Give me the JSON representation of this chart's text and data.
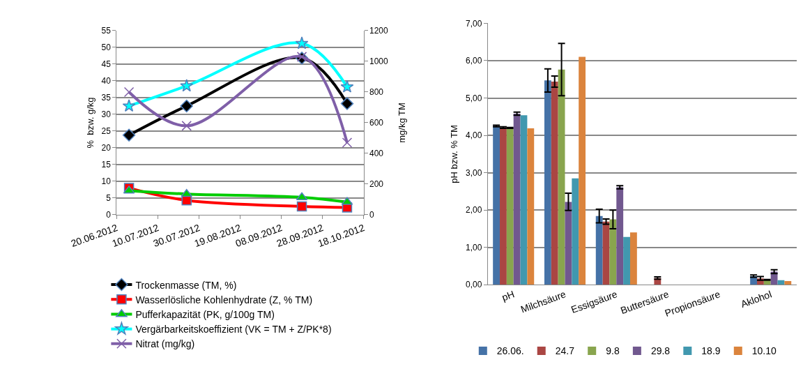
{
  "chart_data": [
    {
      "type": "line",
      "ylabel": "%  bzw. g/kg",
      "y2label": "mg/kg TM",
      "x": [
        "2012-06-26",
        "2012-07-24",
        "2012-09-18",
        "2012-10-10"
      ],
      "xlim": [
        "2012-06-20",
        "2012-10-18"
      ],
      "xticks": [
        {
          "value": "2012-06-20",
          "label": "20.06.2012"
        },
        {
          "value": "2012-07-10",
          "label": "10.07.2012"
        },
        {
          "value": "2012-07-30",
          "label": "30.07.2012"
        },
        {
          "value": "2012-08-19",
          "label": "19.08.2012"
        },
        {
          "value": "2012-09-08",
          "label": "08.09.2012"
        },
        {
          "value": "2012-09-28",
          "label": "28.09.2012"
        },
        {
          "value": "2012-10-18",
          "label": "18.10.2012"
        }
      ],
      "ylim": [
        0,
        55
      ],
      "yticks": [
        0,
        5,
        10,
        15,
        20,
        25,
        30,
        35,
        40,
        45,
        50,
        55
      ],
      "y2lim": [
        0,
        1200
      ],
      "y2ticks": [
        0,
        200,
        400,
        600,
        800,
        1000,
        1200
      ],
      "grid": "y",
      "legend": "bottom",
      "series": [
        {
          "name": "Trockenmasse (TM, %)",
          "color": "#000000",
          "marker": "diamond",
          "values": [
            23.8,
            32.5,
            46.8,
            33.2
          ]
        },
        {
          "name": "Wasserlösliche Kohlenhydrate (Z, % TM)",
          "color": "#ff0000",
          "marker": "square",
          "values": [
            8,
            4.3,
            2.5,
            2.2
          ]
        },
        {
          "name": "Pufferkapazität (PK, g/100g TM)",
          "color": "#00cc00",
          "marker": "triangle",
          "values": [
            7.2,
            6.2,
            5.2,
            3.8
          ]
        },
        {
          "name": "Vergärbarkeitskoeffizient (VK = TM + Z/PK*8)",
          "color": "#00ffff",
          "marker": "star",
          "values": [
            32.5,
            38.5,
            51.2,
            38.2
          ]
        },
        {
          "name": "Nitrat (mg/kg)",
          "color": "#7f5fa8",
          "marker": "cross",
          "axis": "y2",
          "values": [
            800,
            580,
            1030,
            470
          ]
        }
      ]
    },
    {
      "type": "bar",
      "ylabel": "pH bzw. % TM",
      "categories": [
        "pH",
        "Milchsäure",
        "Essigsäure",
        "Buttersäure",
        "Propionsäure",
        "Aklohol"
      ],
      "ylim": [
        0,
        7
      ],
      "yticks": [
        {
          "value": 0,
          "label": "0,00"
        },
        {
          "value": 1,
          "label": "1,00"
        },
        {
          "value": 2,
          "label": "2,00"
        },
        {
          "value": 3,
          "label": "3,00"
        },
        {
          "value": 4,
          "label": "4,00"
        },
        {
          "value": 5,
          "label": "5,00"
        },
        {
          "value": 6,
          "label": "6,00"
        },
        {
          "value": 7,
          "label": "7,00"
        }
      ],
      "grid": "y",
      "legend": "bottom",
      "series": [
        {
          "name": "26.06.",
          "color": "#4572a7",
          "values": [
            4.25,
            5.47,
            1.84,
            null,
            null,
            0.23
          ],
          "errors": [
            0.02,
            0.31,
            0.18,
            null,
            null,
            0.03
          ]
        },
        {
          "name": "24.7",
          "color": "#aa4643",
          "values": [
            4.21,
            5.44,
            1.69,
            0.18,
            null,
            0.17
          ],
          "errors": [
            0.02,
            0.15,
            0.07,
            0.03,
            null,
            0.05
          ]
        },
        {
          "name": "9.8",
          "color": "#89a54e",
          "values": [
            4.2,
            5.76,
            1.75,
            null,
            null,
            0.13
          ],
          "errors": [
            0.01,
            0.7,
            0.25,
            null,
            null,
            0.01
          ]
        },
        {
          "name": "29.8",
          "color": "#71588f",
          "values": [
            4.58,
            2.22,
            2.61,
            null,
            null,
            0.35
          ],
          "errors": [
            0.04,
            0.23,
            0.04,
            null,
            null,
            0.05
          ]
        },
        {
          "name": "18.9",
          "color": "#4198af",
          "values": [
            4.54,
            2.85,
            1.28,
            null,
            null,
            0.12
          ]
        },
        {
          "name": "10.10",
          "color": "#db843d",
          "values": [
            4.19,
            6.1,
            1.4,
            null,
            null,
            0.1
          ]
        }
      ]
    }
  ]
}
